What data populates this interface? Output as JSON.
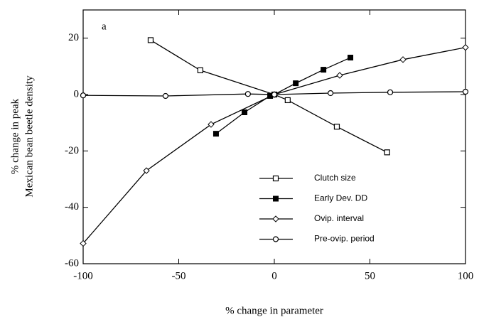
{
  "chart_data": {
    "type": "line",
    "annotation": "a",
    "x_label": "% change in parameter",
    "y_label": [
      "% change in peak",
      "Mexican bean beetle  density"
    ],
    "xlim": [
      -100,
      100
    ],
    "xticks": [
      -100,
      -50,
      0,
      50,
      100
    ],
    "ylim": [
      -60,
      30
    ],
    "yticks": [
      -60,
      -40,
      -20,
      0,
      20
    ],
    "series": [
      {
        "name": "Clutch size",
        "color": "#000000",
        "marker": "square-open",
        "x": [
          -64.7,
          -38.7,
          0,
          7,
          32.7,
          59
        ],
        "values": [
          19.3,
          8.6,
          0,
          -2,
          -11.4,
          -20.5
        ]
      },
      {
        "name": "Early Dev. DD",
        "color": "#000000",
        "marker": "square-filled",
        "x": [
          -30.5,
          -15.6,
          -2.2,
          0,
          11.2,
          25.7,
          39.8
        ],
        "values": [
          -13.9,
          -6.3,
          -0.5,
          0,
          4,
          8.8,
          13.1
        ]
      },
      {
        "name": "Ovip. interval",
        "color": "#000000",
        "marker": "diamond",
        "x": [
          -100,
          -66.9,
          -33.1,
          0,
          34.2,
          67.3,
          100
        ],
        "values": [
          -52.8,
          -27,
          -10.6,
          0,
          6.8,
          12.4,
          16.7
        ]
      },
      {
        "name": "Pre-ovip. period",
        "color": "#000000",
        "marker": "circle",
        "x": [
          -100,
          -56.9,
          -13.8,
          0,
          29.4,
          60.6,
          100
        ],
        "values": [
          -0.3,
          -0.5,
          0.2,
          0,
          0.5,
          0.8,
          1
        ]
      }
    ]
  }
}
